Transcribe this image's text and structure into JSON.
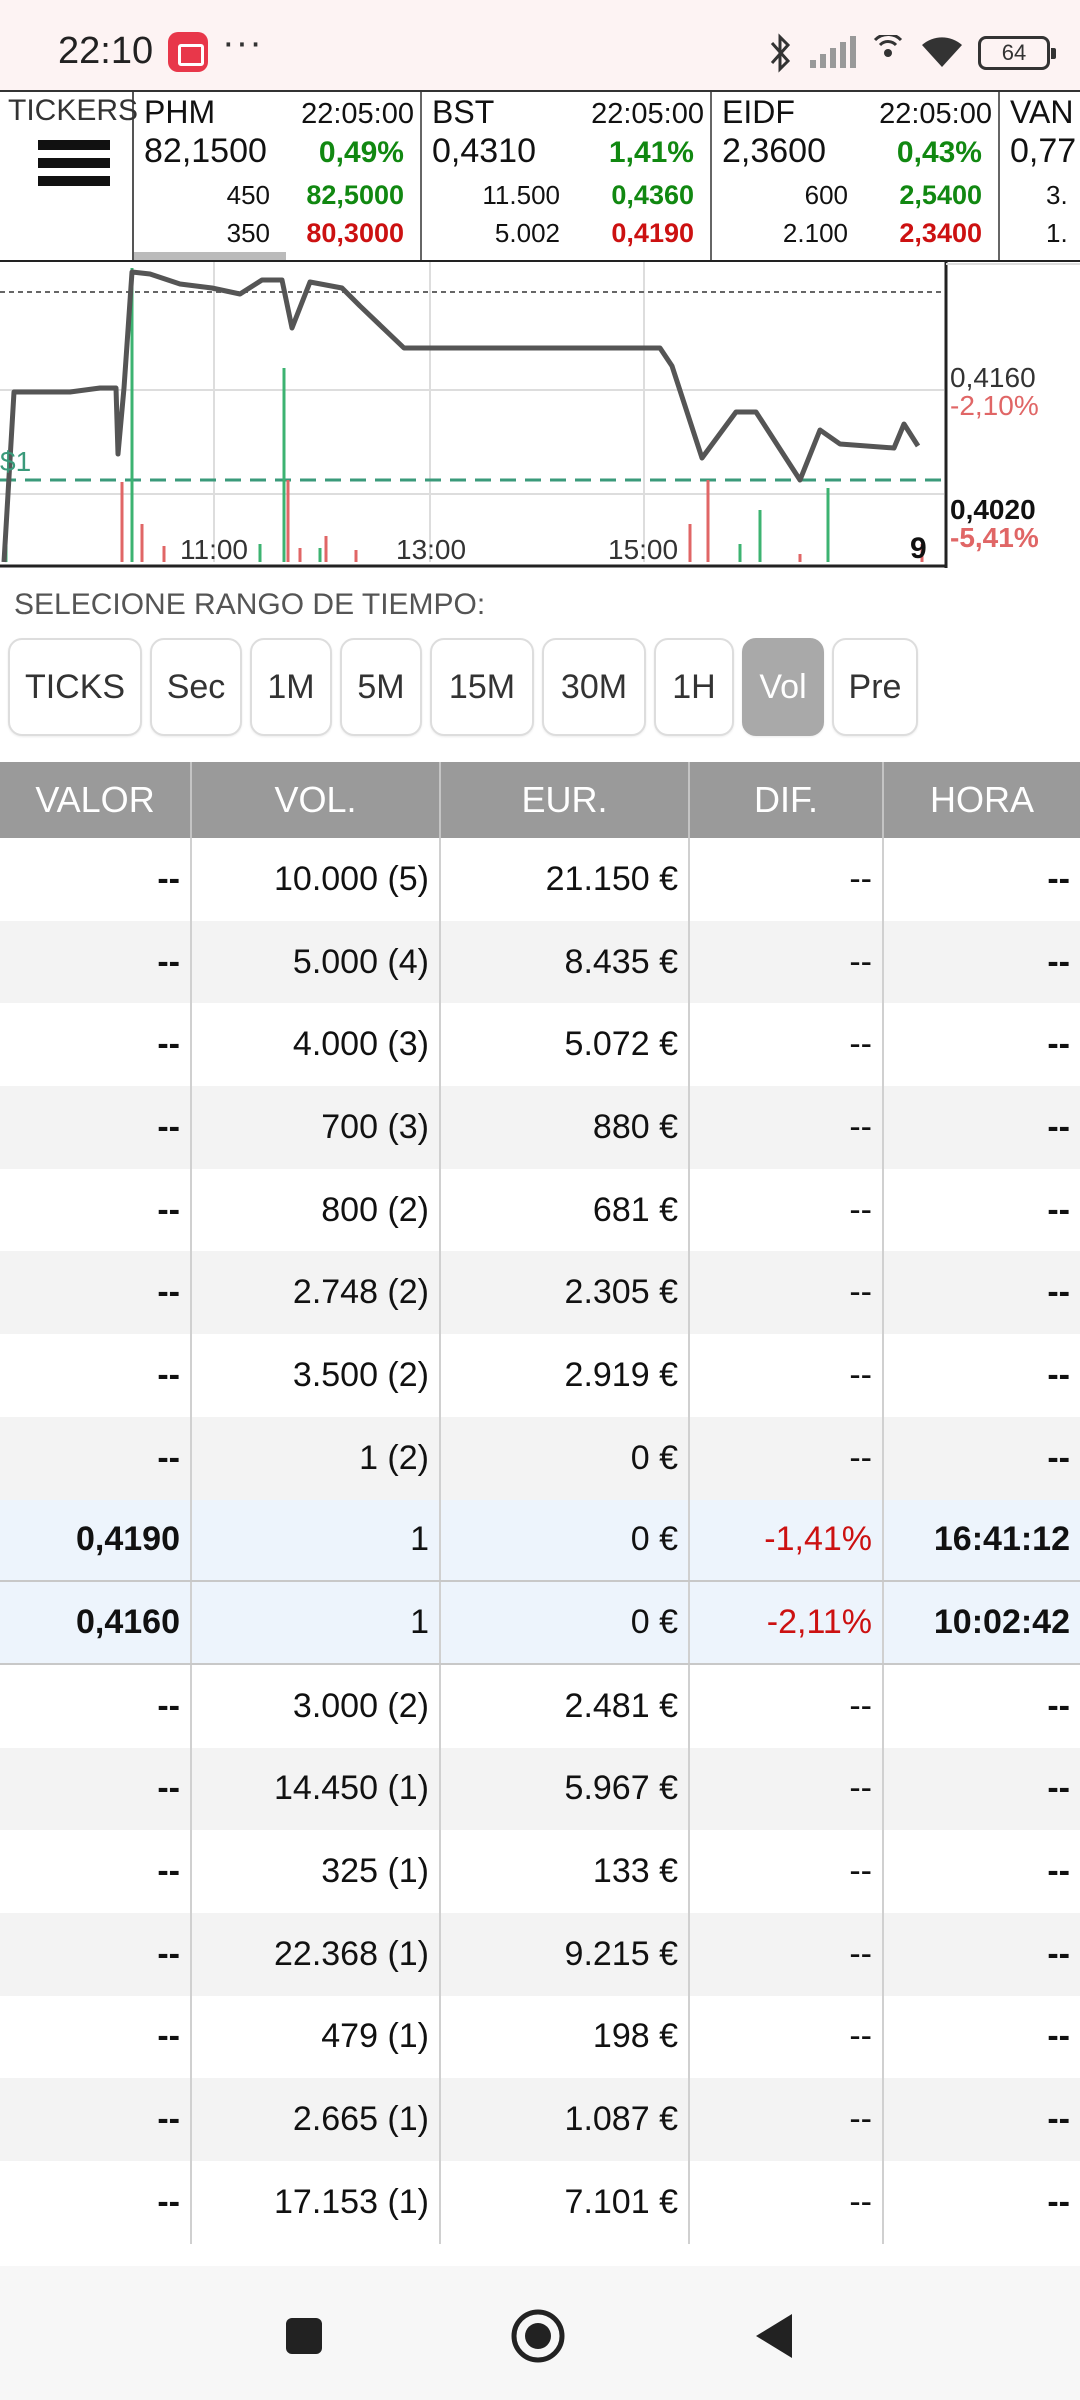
{
  "status_bar": {
    "time": "22:10",
    "more": "···",
    "battery": "64"
  },
  "tickers": {
    "menu_label": "TICKERS",
    "items": [
      {
        "name": "PHM",
        "time": "22:05:00",
        "price": "82,1500",
        "change": "0,49%",
        "bid_size": "450",
        "bid": "82,5000",
        "ask_size": "350",
        "ask": "80,3000"
      },
      {
        "name": "BST",
        "time": "22:05:00",
        "price": "0,4310",
        "change": "1,41%",
        "bid_size": "11.500",
        "bid": "0,4360",
        "ask_size": "5.002",
        "ask": "0,4190"
      },
      {
        "name": "EIDF",
        "time": "22:05:00",
        "price": "2,3600",
        "change": "0,43%",
        "bid_size": "600",
        "bid": "2,5400",
        "ask_size": "2.100",
        "ask": "2,3400"
      },
      {
        "name": "VAN",
        "time": "",
        "price": "0,77",
        "change": "",
        "bid_size": "3.",
        "bid": "",
        "ask_size": "1.",
        "ask": ""
      }
    ]
  },
  "chart": {
    "left_tag": "$1",
    "x_ticks": [
      "11:00",
      "13:00",
      "15:00"
    ],
    "corner_value": "9",
    "right_labels": {
      "mid_price": "0,4160",
      "mid_pct": "-2,10%",
      "low_price": "0,4020",
      "low_pct": "-5,41%"
    },
    "colors": {
      "line": "#555555",
      "up_vol": "#3cb371",
      "down_vol": "#e06666",
      "dashed": "#3a9a7a"
    }
  },
  "range": {
    "label": "SELECIONE RANGO DE TIEMPO:",
    "buttons": [
      "TICKS",
      "Sec",
      "1M",
      "5M",
      "15M",
      "30M",
      "1H",
      "Vol",
      "Pre"
    ],
    "active": "Vol"
  },
  "table": {
    "headers": [
      "VALOR",
      "VOL.",
      "EUR.",
      "DIF.",
      "HORA"
    ],
    "rows": [
      {
        "valor": "--",
        "vol": "10.000 (5)",
        "eur": "21.150 €",
        "dif": "--",
        "hora": "--"
      },
      {
        "valor": "--",
        "vol": "5.000 (4)",
        "eur": "8.435 €",
        "dif": "--",
        "hora": "--"
      },
      {
        "valor": "--",
        "vol": "4.000 (3)",
        "eur": "5.072 €",
        "dif": "--",
        "hora": "--"
      },
      {
        "valor": "--",
        "vol": "700 (3)",
        "eur": "880 €",
        "dif": "--",
        "hora": "--"
      },
      {
        "valor": "--",
        "vol": "800 (2)",
        "eur": "681 €",
        "dif": "--",
        "hora": "--"
      },
      {
        "valor": "--",
        "vol": "2.748 (2)",
        "eur": "2.305 €",
        "dif": "--",
        "hora": "--"
      },
      {
        "valor": "--",
        "vol": "3.500 (2)",
        "eur": "2.919 €",
        "dif": "--",
        "hora": "--"
      },
      {
        "valor": "--",
        "vol": "1 (2)",
        "eur": "0 €",
        "dif": "--",
        "hora": "--"
      },
      {
        "valor": "0,4190",
        "vol": "1",
        "eur": "0 €",
        "dif": "-1,41%",
        "hora": "16:41:12",
        "highlight": true
      },
      {
        "valor": "0,4160",
        "vol": "1",
        "eur": "0 €",
        "dif": "-2,11%",
        "hora": "10:02:42",
        "highlight": true
      },
      {
        "valor": "--",
        "vol": "3.000 (2)",
        "eur": "2.481 €",
        "dif": "--",
        "hora": "--"
      },
      {
        "valor": "--",
        "vol": "14.450 (1)",
        "eur": "5.967 €",
        "dif": "--",
        "hora": "--"
      },
      {
        "valor": "--",
        "vol": "325 (1)",
        "eur": "133 €",
        "dif": "--",
        "hora": "--"
      },
      {
        "valor": "--",
        "vol": "22.368 (1)",
        "eur": "9.215 €",
        "dif": "--",
        "hora": "--"
      },
      {
        "valor": "--",
        "vol": "479 (1)",
        "eur": "198 €",
        "dif": "--",
        "hora": "--"
      },
      {
        "valor": "--",
        "vol": "2.665 (1)",
        "eur": "1.087 €",
        "dif": "--",
        "hora": "--"
      },
      {
        "valor": "--",
        "vol": "17.153 (1)",
        "eur": "7.101 €",
        "dif": "--",
        "hora": "--"
      }
    ]
  },
  "nav": {
    "icons": [
      "recents-icon",
      "home-icon",
      "back-icon"
    ]
  }
}
